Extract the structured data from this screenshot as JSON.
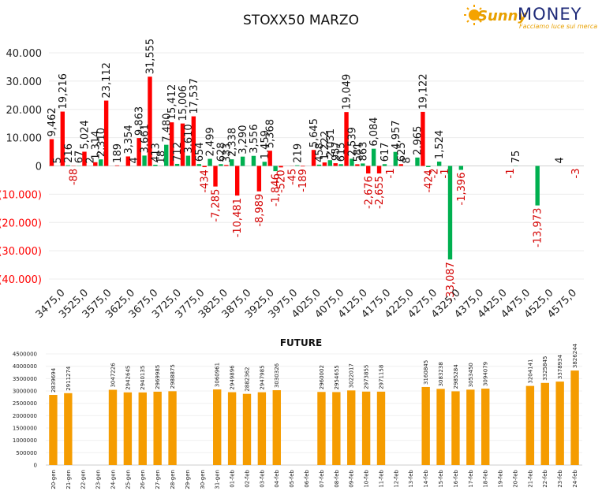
{
  "chart_title": "STOXX50 MARZO",
  "future_title": "FUTURE",
  "logo": {
    "brand_script": "Sunny",
    "brand_word": "MONEY",
    "tagline": "Facciamo luce sui mercati"
  },
  "colors": {
    "red": "#ff0000",
    "green": "#00b050",
    "orange": "#f59c00",
    "negative_label": "#d40000"
  },
  "chart_data": [
    {
      "type": "bar",
      "title": "STOXX50 MARZO",
      "ylim": [
        -40000,
        40000
      ],
      "y_ticks": [
        "(40.000)",
        "(30.000)",
        "(20.000)",
        "(10.000)",
        "0",
        "10.000",
        "20.000",
        "30.000",
        "40.000"
      ],
      "x_tick_labels": [
        "3475,0",
        "3525,0",
        "3575,0",
        "3625,0",
        "3675,0",
        "3725,0",
        "3775,0",
        "3825,0",
        "3875,0",
        "3925,0",
        "3975,0",
        "4025,0",
        "4075,0",
        "4125,0",
        "4175,0",
        "4225,0",
        "4275,0",
        "4325,0",
        "4375,0",
        "4425,0",
        "4475,0",
        "4525,0",
        "4575,0"
      ],
      "grid": true,
      "bars": [
        {
          "color": "red",
          "value": 9462,
          "label": "9,462"
        },
        {
          "color": "green",
          "value": 5,
          "label": "5"
        },
        {
          "color": "red",
          "value": 19216,
          "label": "19,216"
        },
        {
          "color": "green",
          "value": 216,
          "label": "216"
        },
        {
          "color": "red",
          "value": -88,
          "label": "-88"
        },
        {
          "color": "green",
          "value": 67,
          "label": "67"
        },
        {
          "color": "red",
          "value": 5024,
          "label": "5,024"
        },
        {
          "color": "green",
          "value": 2,
          "label": "2"
        },
        {
          "color": "red",
          "value": 1314,
          "label": "1,314"
        },
        {
          "color": "green",
          "value": 2310,
          "label": "2,310"
        },
        {
          "color": "red",
          "value": 23112,
          "label": "23,112"
        },
        {
          "color": "green",
          "value": 0,
          "label": ""
        },
        {
          "color": "red",
          "value": 189,
          "label": "189"
        },
        {
          "color": "green",
          "value": 0,
          "label": ""
        },
        {
          "color": "red",
          "value": 3354,
          "label": "3,354"
        },
        {
          "color": "green",
          "value": 4,
          "label": "4"
        },
        {
          "color": "red",
          "value": 9863,
          "label": "9,863"
        },
        {
          "color": "green",
          "value": 3661,
          "label": "3,661"
        },
        {
          "color": "red",
          "value": 31555,
          "label": "31,555"
        },
        {
          "color": "green",
          "value": 413,
          "label": "413"
        },
        {
          "color": "red",
          "value": 18,
          "label": "18"
        },
        {
          "color": "green",
          "value": 7480,
          "label": "7,480"
        },
        {
          "color": "red",
          "value": 15412,
          "label": "15,412"
        },
        {
          "color": "green",
          "value": 712,
          "label": "712"
        },
        {
          "color": "red",
          "value": 15006,
          "label": "15,006"
        },
        {
          "color": "green",
          "value": 3610,
          "label": "3,610"
        },
        {
          "color": "red",
          "value": 17537,
          "label": "17,537"
        },
        {
          "color": "green",
          "value": 654,
          "label": "654"
        },
        {
          "color": "red",
          "value": -434,
          "label": "-434"
        },
        {
          "color": "green",
          "value": 2499,
          "label": "2,499"
        },
        {
          "color": "red",
          "value": -7285,
          "label": "-7,285"
        },
        {
          "color": "green",
          "value": 628,
          "label": "628"
        },
        {
          "color": "red",
          "value": 333,
          "label": "333"
        },
        {
          "color": "green",
          "value": 2338,
          "label": "2,338"
        },
        {
          "color": "red",
          "value": -10481,
          "label": "-10,481"
        },
        {
          "color": "green",
          "value": 3290,
          "label": "3,290"
        },
        {
          "color": "red",
          "value": 0,
          "label": ""
        },
        {
          "color": "green",
          "value": 3556,
          "label": "3,556"
        },
        {
          "color": "red",
          "value": -8989,
          "label": "-8,989"
        },
        {
          "color": "green",
          "value": 1459,
          "label": "1,459"
        },
        {
          "color": "red",
          "value": 5368,
          "label": "5,368"
        },
        {
          "color": "green",
          "value": -1846,
          "label": "-1,846"
        },
        {
          "color": "red",
          "value": -520,
          "label": "-520"
        },
        {
          "color": "green",
          "value": 0,
          "label": ""
        },
        {
          "color": "red",
          "value": -45,
          "label": "-45"
        },
        {
          "color": "green",
          "value": 219,
          "label": "219"
        },
        {
          "color": "red",
          "value": -189,
          "label": "-189"
        },
        {
          "color": "green",
          "value": 0,
          "label": ""
        },
        {
          "color": "red",
          "value": 5645,
          "label": "5,645"
        },
        {
          "color": "green",
          "value": 458,
          "label": "458"
        },
        {
          "color": "red",
          "value": 1222,
          "label": "1,222"
        },
        {
          "color": "green",
          "value": 2031,
          "label": "2,031"
        },
        {
          "color": "red",
          "value": 957,
          "label": "957"
        },
        {
          "color": "green",
          "value": 615,
          "label": "615"
        },
        {
          "color": "red",
          "value": 19049,
          "label": "19,049"
        },
        {
          "color": "green",
          "value": 2539,
          "label": "2,539"
        },
        {
          "color": "red",
          "value": 581,
          "label": "581"
        },
        {
          "color": "green",
          "value": 863,
          "label": "863"
        },
        {
          "color": "red",
          "value": -2676,
          "label": "-2,676"
        },
        {
          "color": "green",
          "value": 6084,
          "label": "6,084"
        },
        {
          "color": "red",
          "value": -2655,
          "label": "-2,655"
        },
        {
          "color": "green",
          "value": 617,
          "label": "617"
        },
        {
          "color": "red",
          "value": -1,
          "label": "-1"
        },
        {
          "color": "green",
          "value": 4957,
          "label": "4,957"
        },
        {
          "color": "red",
          "value": 625,
          "label": "625"
        },
        {
          "color": "green",
          "value": 8,
          "label": "8"
        },
        {
          "color": "red",
          "value": 0,
          "label": ""
        },
        {
          "color": "green",
          "value": 2965,
          "label": "2,965"
        },
        {
          "color": "red",
          "value": 19122,
          "label": "19,122"
        },
        {
          "color": "green",
          "value": -424,
          "label": "-424"
        },
        {
          "color": "red",
          "value": -2,
          "label": "-2"
        },
        {
          "color": "green",
          "value": 1524,
          "label": "1,524"
        },
        {
          "color": "red",
          "value": -1,
          "label": "-1"
        },
        {
          "color": "green",
          "value": -33087,
          "label": "-33,087"
        },
        {
          "color": "red",
          "value": 0,
          "label": ""
        },
        {
          "color": "green",
          "value": -1396,
          "label": "-1,396"
        },
        {
          "color": "red",
          "value": 0,
          "label": ""
        },
        {
          "color": "green",
          "value": 0,
          "label": ""
        },
        {
          "color": "red",
          "value": 0,
          "label": ""
        },
        {
          "color": "green",
          "value": 0,
          "label": ""
        },
        {
          "color": "red",
          "value": 0,
          "label": ""
        },
        {
          "color": "green",
          "value": 0,
          "label": ""
        },
        {
          "color": "red",
          "value": 0,
          "label": ""
        },
        {
          "color": "green",
          "value": 0,
          "label": ""
        },
        {
          "color": "red",
          "value": -1,
          "label": "-1"
        },
        {
          "color": "green",
          "value": 75,
          "label": "75"
        },
        {
          "color": "red",
          "value": 0,
          "label": ""
        },
        {
          "color": "green",
          "value": 0,
          "label": ""
        },
        {
          "color": "red",
          "value": 0,
          "label": ""
        },
        {
          "color": "green",
          "value": -13973,
          "label": "-13,973"
        },
        {
          "color": "red",
          "value": 0,
          "label": ""
        },
        {
          "color": "green",
          "value": 0,
          "label": ""
        },
        {
          "color": "red",
          "value": 0,
          "label": ""
        },
        {
          "color": "green",
          "value": 4,
          "label": "4"
        },
        {
          "color": "red",
          "value": 0,
          "label": ""
        },
        {
          "color": "green",
          "value": 0,
          "label": ""
        },
        {
          "color": "red",
          "value": -3,
          "label": "-3"
        },
        {
          "color": "green",
          "value": 0,
          "label": ""
        }
      ]
    },
    {
      "type": "bar",
      "title": "FUTURE",
      "ylim": [
        0,
        4500000
      ],
      "y_ticks": [
        "0",
        "500000",
        "1000000",
        "1500000",
        "2000000",
        "2500000",
        "3000000",
        "3500000",
        "4000000",
        "4500000"
      ],
      "categories": [
        "20-gen",
        "21-gen",
        "22-gen",
        "23-gen",
        "24-gen",
        "25-gen",
        "26-gen",
        "27-gen",
        "28-gen",
        "29-gen",
        "30-gen",
        "31-gen",
        "01-feb",
        "02-feb",
        "03-feb",
        "04-feb",
        "05-feb",
        "06-feb",
        "07-feb",
        "08-feb",
        "09-feb",
        "10-feb",
        "11-feb",
        "12-feb",
        "13-feb",
        "14-feb",
        "15-feb",
        "16-feb",
        "17-feb",
        "18-feb",
        "19-feb",
        "20-feb",
        "21-feb",
        "22-feb",
        "23-feb",
        "24-feb"
      ],
      "values": [
        2839694,
        2911274,
        null,
        null,
        3047226,
        2942645,
        2940135,
        2969985,
        2988875,
        null,
        null,
        3060961,
        2949896,
        2882362,
        2947985,
        3030326,
        null,
        null,
        2960002,
        2954655,
        3022017,
        2973855,
        2971158,
        null,
        null,
        3160845,
        3083238,
        2985284,
        3053450,
        3094079,
        null,
        null,
        3204141,
        3325845,
        3378934,
        3826244
      ]
    }
  ]
}
